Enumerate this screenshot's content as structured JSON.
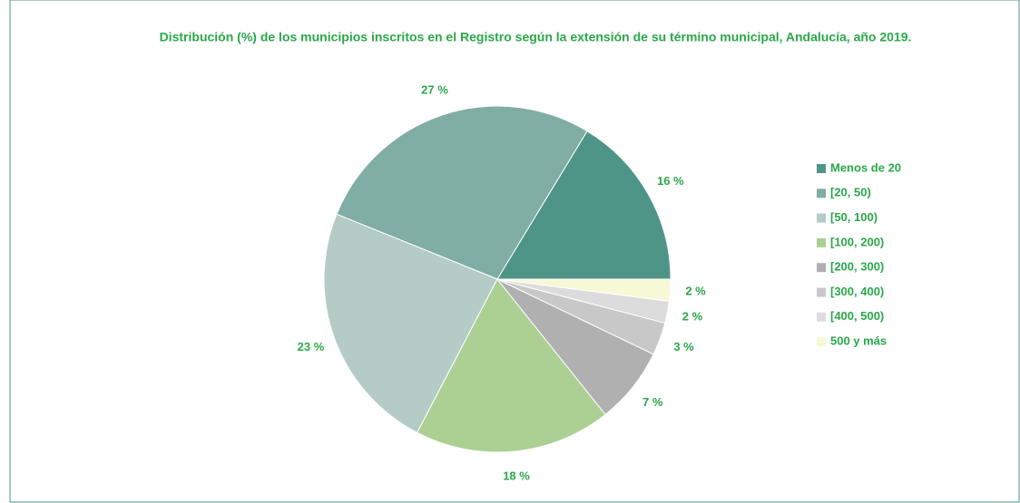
{
  "chart_data": {
    "type": "pie",
    "title": "Distribución (%) de los municipios inscritos en el Registro según la extensión de su término municipal, Andalucía, año 2019.",
    "categories": [
      "Menos de 20",
      "[20, 50)",
      "[50, 100)",
      "[100, 200)",
      "[200, 300)",
      "[300, 400)",
      "[400, 500)",
      "500 y más"
    ],
    "values": [
      16,
      27,
      23,
      18,
      7,
      3,
      2,
      2
    ],
    "value_labels": [
      "16 %",
      "27 %",
      "23 %",
      "18 %",
      "7 %",
      "3 %",
      "2 %",
      "2 %"
    ],
    "colors": [
      "#4e9587",
      "#80ada4",
      "#b4cbc6",
      "#acd093",
      "#b0b0b0",
      "#c8c8c8",
      "#dcdcdc",
      "#f6f8d6"
    ],
    "legend": "right"
  }
}
